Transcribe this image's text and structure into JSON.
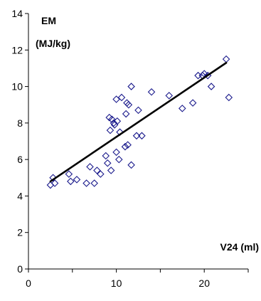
{
  "chart_data": {
    "type": "scatter",
    "title": "",
    "ylabel_lines": [
      "EM",
      "(MJ/kg)"
    ],
    "xlabel": "V24 (ml)",
    "xlim": [
      0,
      25
    ],
    "ylim": [
      0,
      14
    ],
    "xticks": [
      0,
      10,
      20
    ],
    "yticks": [
      0,
      2,
      4,
      6,
      8,
      10,
      12,
      14
    ],
    "grid": false,
    "legend": "none",
    "marker": "diamond-open",
    "marker_color": "#1a1a8c",
    "trendline_color": "#000000",
    "points": [
      {
        "x": 2.5,
        "y": 4.6
      },
      {
        "x": 2.8,
        "y": 5.0
      },
      {
        "x": 3.0,
        "y": 4.7
      },
      {
        "x": 4.6,
        "y": 5.2
      },
      {
        "x": 4.8,
        "y": 4.8
      },
      {
        "x": 5.5,
        "y": 4.9
      },
      {
        "x": 6.6,
        "y": 4.7
      },
      {
        "x": 7.0,
        "y": 5.6
      },
      {
        "x": 7.5,
        "y": 4.7
      },
      {
        "x": 7.8,
        "y": 5.4
      },
      {
        "x": 8.2,
        "y": 5.2
      },
      {
        "x": 8.8,
        "y": 6.2
      },
      {
        "x": 9.0,
        "y": 5.8
      },
      {
        "x": 9.2,
        "y": 8.3
      },
      {
        "x": 9.3,
        "y": 7.6
      },
      {
        "x": 9.4,
        "y": 5.4
      },
      {
        "x": 9.5,
        "y": 8.2
      },
      {
        "x": 9.7,
        "y": 8.0
      },
      {
        "x": 9.8,
        "y": 7.9
      },
      {
        "x": 10.0,
        "y": 9.3
      },
      {
        "x": 10.0,
        "y": 6.4
      },
      {
        "x": 10.1,
        "y": 8.1
      },
      {
        "x": 10.3,
        "y": 6.0
      },
      {
        "x": 10.4,
        "y": 7.5
      },
      {
        "x": 10.6,
        "y": 9.4
      },
      {
        "x": 11.0,
        "y": 6.7
      },
      {
        "x": 11.1,
        "y": 8.5
      },
      {
        "x": 11.2,
        "y": 9.1
      },
      {
        "x": 11.3,
        "y": 6.8
      },
      {
        "x": 11.4,
        "y": 9.0
      },
      {
        "x": 11.7,
        "y": 10.0
      },
      {
        "x": 11.7,
        "y": 5.7
      },
      {
        "x": 12.3,
        "y": 7.3
      },
      {
        "x": 12.5,
        "y": 8.7
      },
      {
        "x": 12.9,
        "y": 7.3
      },
      {
        "x": 14.0,
        "y": 9.7
      },
      {
        "x": 16.0,
        "y": 9.5
      },
      {
        "x": 17.5,
        "y": 8.8
      },
      {
        "x": 18.7,
        "y": 9.1
      },
      {
        "x": 19.3,
        "y": 10.6
      },
      {
        "x": 19.8,
        "y": 10.6
      },
      {
        "x": 20.0,
        "y": 10.7
      },
      {
        "x": 20.4,
        "y": 10.6
      },
      {
        "x": 20.8,
        "y": 10.0
      },
      {
        "x": 22.5,
        "y": 11.5
      },
      {
        "x": 22.8,
        "y": 9.4
      }
    ],
    "trendline": {
      "x1": 2.5,
      "y1": 4.8,
      "x2": 22.5,
      "y2": 11.3
    }
  }
}
